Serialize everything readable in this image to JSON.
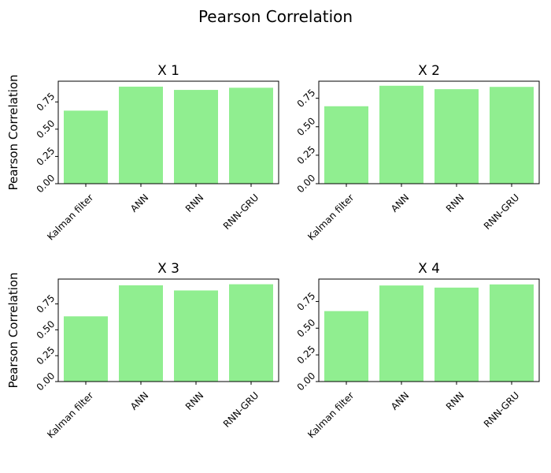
{
  "figure": {
    "title": "Pearson Correlation"
  },
  "chart_data": [
    {
      "type": "bar",
      "title": "X 1",
      "ylabel": "Pearson Correlation",
      "xlabel": "",
      "categories": [
        "Kalman filter",
        "ANN",
        "RNN",
        "RNN-GRU"
      ],
      "values": [
        0.67,
        0.89,
        0.86,
        0.88
      ],
      "ylim": [
        0,
        0.94
      ],
      "yticks": [
        "0.00",
        "0.25",
        "0.50",
        "0.75"
      ],
      "bar_color": "#90ee90",
      "grid": false
    },
    {
      "type": "bar",
      "title": "X 2",
      "ylabel": "",
      "xlabel": "",
      "categories": [
        "Kalman filter",
        "ANN",
        "RNN",
        "RNN-GRU"
      ],
      "values": [
        0.68,
        0.86,
        0.83,
        0.85
      ],
      "ylim": [
        0,
        0.9
      ],
      "yticks": [
        "0.00",
        "0.25",
        "0.50",
        "0.75"
      ],
      "bar_color": "#90ee90",
      "grid": false
    },
    {
      "type": "bar",
      "title": "X 3",
      "ylabel": "Pearson Correlation",
      "xlabel": "",
      "categories": [
        "Kalman filter",
        "ANN",
        "RNN",
        "RNN-GRU"
      ],
      "values": [
        0.63,
        0.93,
        0.88,
        0.94
      ],
      "ylim": [
        0,
        0.99
      ],
      "yticks": [
        "0.00",
        "0.25",
        "0.50",
        "0.75"
      ],
      "bar_color": "#90ee90",
      "grid": false
    },
    {
      "type": "bar",
      "title": "X 4",
      "ylabel": "",
      "xlabel": "",
      "categories": [
        "Kalman filter",
        "ANN",
        "RNN",
        "RNN-GRU"
      ],
      "values": [
        0.66,
        0.9,
        0.88,
        0.91
      ],
      "ylim": [
        0,
        0.96
      ],
      "yticks": [
        "0.00",
        "0.25",
        "0.50",
        "0.75"
      ],
      "bar_color": "#90ee90",
      "grid": false
    }
  ]
}
